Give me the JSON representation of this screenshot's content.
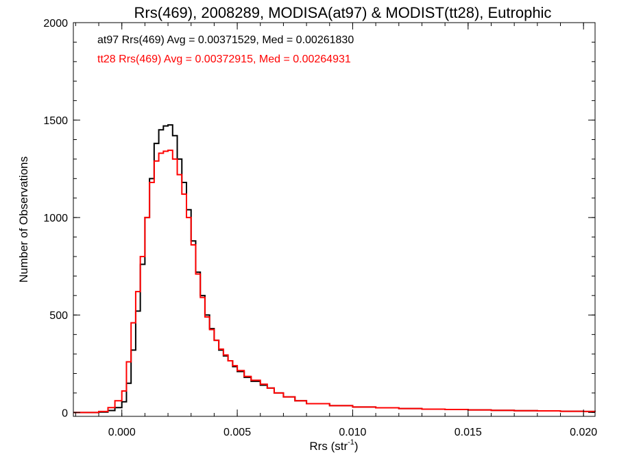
{
  "chart_data": {
    "type": "line",
    "title": "Rrs(469), 2008289, MODISA(at97) & MODIST(tt28), Eutrophic",
    "xlabel": "Rrs (str",
    "xlabel_sup": "-1",
    "xlabel_end": ")",
    "ylabel": "Number of Observations",
    "xlim": [
      -0.0021,
      0.0205
    ],
    "ylim": [
      -20,
      2000
    ],
    "xticks": [
      0.0,
      0.005,
      0.01,
      0.015,
      0.02
    ],
    "xtick_labels": [
      "0.000",
      "0.005",
      "0.010",
      "0.015",
      "0.020"
    ],
    "yticks": [
      0,
      500,
      1000,
      1500,
      2000
    ],
    "ytick_labels": [
      "0",
      "500",
      "1000",
      "1500",
      "2000"
    ],
    "grid": false,
    "legend": "top-left",
    "annotations": [
      {
        "text": "at97 Rrs(469) Avg = 0.00371529, Med = 0.00261830",
        "color": "#000000"
      },
      {
        "text": "tt28 Rrs(469) Avg = 0.00372915, Med = 0.00264931",
        "color": "#ff0000"
      }
    ],
    "series": [
      {
        "color": "#000000",
        "x": [
          -0.0021,
          -0.0015,
          -0.001,
          -0.0006,
          -0.0003,
          0.0,
          0.0002,
          0.0004,
          0.0006,
          0.0008,
          0.001,
          0.0012,
          0.0014,
          0.0016,
          0.0018,
          0.002,
          0.0022,
          0.0024,
          0.0026,
          0.0028,
          0.003,
          0.0032,
          0.0034,
          0.0036,
          0.0038,
          0.004,
          0.0042,
          0.0044,
          0.0046,
          0.0048,
          0.005,
          0.0053,
          0.0056,
          0.006,
          0.0063,
          0.0066,
          0.007,
          0.0075,
          0.008,
          0.009,
          0.01,
          0.011,
          0.012,
          0.013,
          0.014,
          0.015,
          0.016,
          0.017,
          0.018,
          0.019,
          0.02,
          0.0205
        ],
        "values": [
          0,
          0,
          2,
          10,
          25,
          55,
          150,
          320,
          520,
          760,
          1000,
          1200,
          1380,
          1450,
          1470,
          1475,
          1420,
          1300,
          1180,
          1040,
          880,
          720,
          600,
          500,
          430,
          370,
          320,
          290,
          265,
          235,
          210,
          180,
          160,
          140,
          125,
          100,
          80,
          60,
          45,
          35,
          28,
          24,
          20,
          17,
          15,
          13,
          11,
          9,
          8,
          6,
          5,
          4
        ]
      },
      {
        "color": "#ff0000",
        "x": [
          -0.0021,
          -0.0015,
          -0.001,
          -0.0006,
          -0.0003,
          0.0,
          0.0002,
          0.0004,
          0.0006,
          0.0008,
          0.001,
          0.0012,
          0.0014,
          0.0016,
          0.0018,
          0.002,
          0.0022,
          0.0024,
          0.0026,
          0.0028,
          0.003,
          0.0032,
          0.0034,
          0.0036,
          0.0038,
          0.004,
          0.0042,
          0.0044,
          0.0046,
          0.0048,
          0.005,
          0.0053,
          0.0056,
          0.006,
          0.0063,
          0.0066,
          0.007,
          0.0075,
          0.008,
          0.009,
          0.01,
          0.011,
          0.012,
          0.013,
          0.014,
          0.015,
          0.016,
          0.017,
          0.018,
          0.019,
          0.02,
          0.0205
        ],
        "values": [
          0,
          0,
          5,
          25,
          60,
          110,
          260,
          460,
          620,
          800,
          1000,
          1180,
          1290,
          1330,
          1340,
          1345,
          1300,
          1220,
          1120,
          1000,
          860,
          710,
          590,
          490,
          425,
          370,
          325,
          295,
          265,
          240,
          215,
          185,
          165,
          145,
          125,
          100,
          80,
          60,
          45,
          35,
          28,
          24,
          20,
          17,
          15,
          13,
          11,
          9,
          8,
          6,
          5,
          4
        ]
      }
    ]
  }
}
